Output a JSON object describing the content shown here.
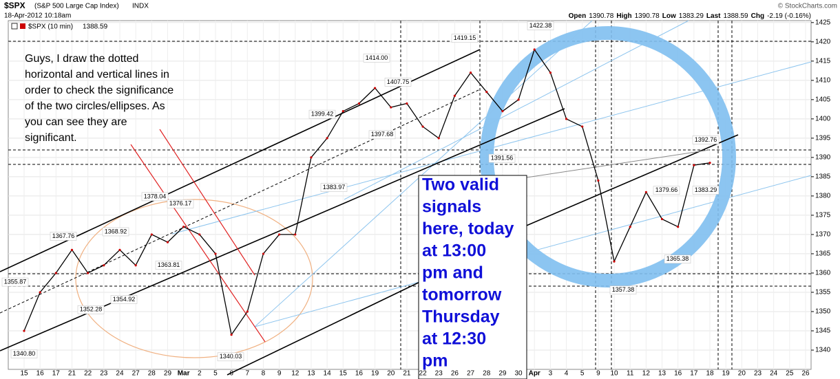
{
  "chart_data": {
    "type": "line",
    "title": "$SPX",
    "subtitle": "(S&P 500 Large Cap Index)",
    "exchange": "INDX",
    "timestamp": "18-Apr-2012 10:18am",
    "quote": [
      "Open",
      "1390.78",
      "High",
      "1390.78",
      "Low",
      "1383.29",
      "Last",
      "1388.59",
      "Chg",
      "-2.19 (-0.16%)"
    ],
    "credit": "© StockCharts.com",
    "legend_label": "$SPX (10 min)",
    "legend_value": "1388.59",
    "categories": [
      "15",
      "16",
      "17",
      "21",
      "22",
      "23",
      "24",
      "27",
      "28",
      "29",
      "Mar",
      "2",
      "5",
      "6",
      "7",
      "8",
      "9",
      "12",
      "13",
      "14",
      "15",
      "16",
      "19",
      "20",
      "21",
      "22",
      "23",
      "26",
      "27",
      "28",
      "29",
      "30",
      "Apr",
      "3",
      "4",
      "5",
      "9",
      "10",
      "11",
      "12",
      "13",
      "16",
      "17",
      "18",
      "19",
      "20",
      "23",
      "24",
      "25",
      "26"
    ],
    "series": [
      {
        "name": "$SPX (10 min)",
        "color": "#000000",
        "values": [
          1345,
          1355,
          1360,
          1366,
          1360,
          1362,
          1366,
          1362,
          1370,
          1368,
          1372,
          1370,
          1365,
          1344,
          1350,
          1365,
          1370,
          1370,
          1390,
          1395,
          1402,
          1404,
          1408,
          1403,
          1404,
          1398,
          1395,
          1406,
          1412,
          1407,
          1402,
          1405,
          1418,
          1412,
          1400,
          1398,
          1384,
          1363,
          1372,
          1381,
          1374,
          1372,
          1388,
          1388.59,
          null,
          null,
          null,
          null,
          null,
          null
        ]
      }
    ],
    "ylim": [
      1335,
      1425.5
    ],
    "yticks": [
      1340,
      1345,
      1350,
      1355,
      1360,
      1365,
      1370,
      1375,
      1380,
      1385,
      1390,
      1395,
      1400,
      1405,
      1410,
      1415,
      1420,
      1425
    ],
    "grid": true,
    "price_labels": [
      {
        "label": "1355.87",
        "value": 1355.87
      },
      {
        "label": "1340.80",
        "value": 1340.8
      },
      {
        "label": "1367.76",
        "value": 1367.76
      },
      {
        "label": "1352.28",
        "value": 1352.28
      },
      {
        "label": "1354.92",
        "value": 1354.92
      },
      {
        "label": "1368.92",
        "value": 1368.92
      },
      {
        "label": "1378.04",
        "value": 1378.04
      },
      {
        "label": "1376.17",
        "value": 1376.17
      },
      {
        "label": "1363.81",
        "value": 1363.81
      },
      {
        "label": "1340.03",
        "value": 1340.03
      },
      {
        "label": "1399.42",
        "value": 1399.42
      },
      {
        "label": "1383.97",
        "value": 1383.97
      },
      {
        "label": "1414.00",
        "value": 1414.0
      },
      {
        "label": "1407.75",
        "value": 1407.75
      },
      {
        "label": "1397.68",
        "value": 1397.68
      },
      {
        "label": "1419.15",
        "value": 1419.15
      },
      {
        "label": "1422.38",
        "value": 1422.38
      },
      {
        "label": "1391.56",
        "value": 1391.56
      },
      {
        "label": "1357.38",
        "value": 1357.38
      },
      {
        "label": "1379.66",
        "value": 1379.66
      },
      {
        "label": "1365.38",
        "value": 1365.38
      },
      {
        "label": "1392.76",
        "value": 1392.76
      },
      {
        "label": "1383.29",
        "value": 1383.29
      }
    ],
    "note": [
      "Guys, I draw the dotted",
      "horizontal and vertical lines in",
      "order to check the significance",
      "of the two circles/ellipses. As",
      "you can see they are",
      "significant."
    ],
    "callout": [
      "Two valid",
      "signals",
      "here, today",
      "at 13:00",
      "pm  and",
      "tomorrow",
      "Thursday",
      "at 12:30",
      "pm"
    ]
  }
}
